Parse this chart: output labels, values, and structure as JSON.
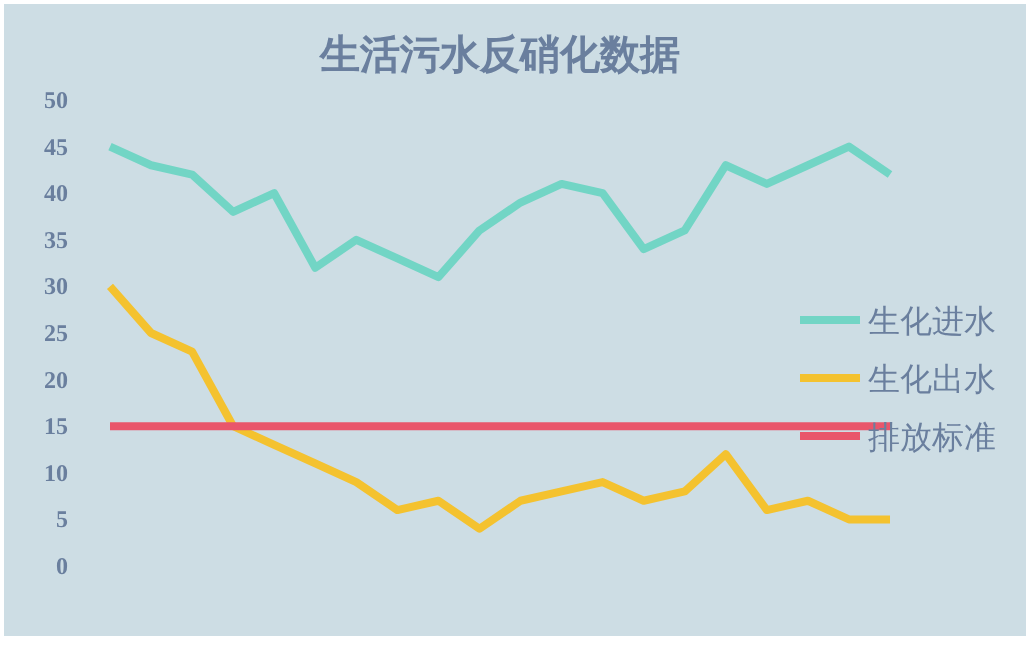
{
  "chart_data": {
    "type": "line",
    "title": "生活污水反硝化数据",
    "categories": [
      null,
      null,
      null,
      null,
      null,
      null,
      null,
      null,
      null,
      null,
      null,
      null,
      null,
      null,
      null,
      null,
      null,
      null,
      null,
      null
    ],
    "series": [
      {
        "name": "生化进水",
        "color": "#72d5c5",
        "values": [
          45,
          43,
          42,
          38,
          40,
          32,
          35,
          33,
          31,
          36,
          39,
          41,
          40,
          34,
          36,
          43,
          41,
          43,
          45,
          42
        ]
      },
      {
        "name": "生化出水",
        "color": "#f4c22f",
        "values": [
          30,
          25,
          23,
          15,
          13,
          11,
          9,
          6,
          7,
          4,
          7,
          8,
          9,
          7,
          8,
          12,
          6,
          7,
          5,
          5
        ]
      },
      {
        "name": "排放标准",
        "color": "#e9566b",
        "values": [
          15,
          15,
          15,
          15,
          15,
          15,
          15,
          15,
          15,
          15,
          15,
          15,
          15,
          15,
          15,
          15,
          15,
          15,
          15,
          15
        ]
      }
    ],
    "ylim": [
      0,
      50
    ],
    "yticks": [
      0,
      5,
      10,
      15,
      20,
      25,
      30,
      35,
      40,
      45,
      50
    ],
    "legend": "right",
    "marker": "none",
    "line_style": "solid"
  }
}
